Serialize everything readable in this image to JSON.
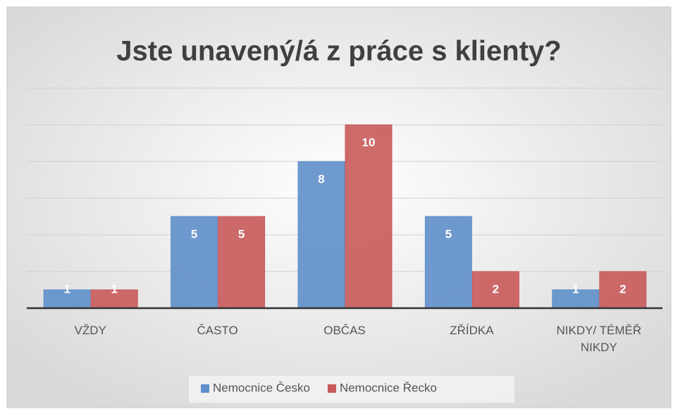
{
  "chart_data": {
    "type": "bar",
    "title": "Jste unavený/á z práce s klienty?",
    "categories": [
      "VŽDY",
      "ČASTO",
      "OBČAS",
      "ZŘÍDKA",
      "NIKDY/ TÉMĚŘ NIKDY"
    ],
    "series": [
      {
        "name": "Nemocnice Česko",
        "color": "#5f8fca",
        "values": [
          1,
          5,
          8,
          5,
          1
        ]
      },
      {
        "name": "Nemocnice Řecko",
        "color": "#c95a5a",
        "values": [
          1,
          5,
          10,
          2,
          2
        ]
      }
    ],
    "ylim": [
      0,
      12
    ],
    "yticks": [
      0,
      2,
      4,
      6,
      8,
      10,
      12
    ],
    "grid": true,
    "legend": "bottom"
  }
}
